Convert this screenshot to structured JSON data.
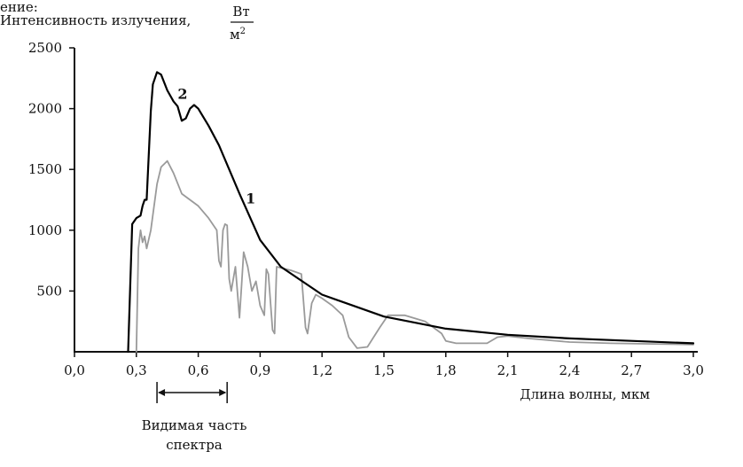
{
  "page_top_fragment": "ение:",
  "chart_data": {
    "type": "line",
    "ylabel": "Интенсивность излучения,",
    "yunit_num": "Вт",
    "yunit_den": "м",
    "yunit_den_exp": "2",
    "xlabel": "Длина волны, мкм",
    "xlim": [
      0,
      3.0
    ],
    "ylim": [
      0,
      2500
    ],
    "x_ticks": [
      "0,0",
      "0,3",
      "0,6",
      "0,9",
      "1,2",
      "1,5",
      "1,8",
      "2,1",
      "2,4",
      "2,7",
      "3,0"
    ],
    "x_tick_values": [
      0,
      0.3,
      0.6,
      0.9,
      1.2,
      1.5,
      1.8,
      2.1,
      2.4,
      2.7,
      3.0
    ],
    "y_ticks": [
      "2500",
      "2000",
      "1500",
      "1000",
      "500"
    ],
    "y_tick_values": [
      2500,
      2000,
      1500,
      1000,
      500
    ],
    "visible_band": {
      "label_line1": "Видимая часть",
      "label_line2": "спектра",
      "x_start": 0.4,
      "x_end": 0.74
    },
    "series": [
      {
        "name": "2",
        "color": "#000000",
        "x": [
          0.26,
          0.28,
          0.3,
          0.32,
          0.33,
          0.34,
          0.35,
          0.37,
          0.38,
          0.4,
          0.42,
          0.45,
          0.48,
          0.5,
          0.52,
          0.54,
          0.56,
          0.58,
          0.6,
          0.65,
          0.7,
          0.8,
          0.9,
          1.0,
          1.2,
          1.5,
          1.8,
          2.1,
          2.4,
          2.7,
          3.0
        ],
        "y": [
          0,
          1050,
          1100,
          1120,
          1200,
          1250,
          1250,
          1980,
          2200,
          2300,
          2280,
          2150,
          2060,
          2020,
          1900,
          1920,
          2000,
          2030,
          2000,
          1860,
          1700,
          1300,
          920,
          700,
          470,
          290,
          190,
          140,
          110,
          90,
          70
        ]
      },
      {
        "name": "1",
        "color": "#9a9a9a",
        "x": [
          0.3,
          0.31,
          0.32,
          0.33,
          0.34,
          0.35,
          0.37,
          0.4,
          0.42,
          0.45,
          0.48,
          0.52,
          0.56,
          0.6,
          0.65,
          0.69,
          0.7,
          0.71,
          0.72,
          0.73,
          0.74,
          0.75,
          0.76,
          0.78,
          0.8,
          0.81,
          0.82,
          0.84,
          0.86,
          0.88,
          0.9,
          0.92,
          0.93,
          0.94,
          0.96,
          0.97,
          0.98,
          1.0,
          1.05,
          1.1,
          1.12,
          1.13,
          1.15,
          1.17,
          1.2,
          1.25,
          1.3,
          1.33,
          1.37,
          1.42,
          1.48,
          1.52,
          1.6,
          1.7,
          1.78,
          1.8,
          1.85,
          1.9,
          1.95,
          2.0,
          2.05,
          2.1,
          2.2,
          2.4,
          2.6,
          2.8,
          3.0
        ],
        "y": [
          0,
          850,
          1000,
          900,
          950,
          850,
          1000,
          1380,
          1520,
          1570,
          1470,
          1300,
          1250,
          1200,
          1100,
          1000,
          750,
          700,
          1000,
          1050,
          1040,
          600,
          500,
          700,
          280,
          550,
          820,
          700,
          500,
          580,
          380,
          300,
          680,
          640,
          180,
          150,
          700,
          690,
          670,
          640,
          200,
          150,
          400,
          470,
          440,
          380,
          300,
          120,
          30,
          40,
          200,
          300,
          300,
          250,
          150,
          90,
          70,
          70,
          70,
          70,
          120,
          130,
          110,
          80,
          70,
          65,
          60
        ]
      }
    ],
    "series_label_positions": [
      {
        "name": "2",
        "x": 0.5,
        "y": 2080
      },
      {
        "name": "1",
        "x": 0.83,
        "y": 1220
      }
    ]
  }
}
